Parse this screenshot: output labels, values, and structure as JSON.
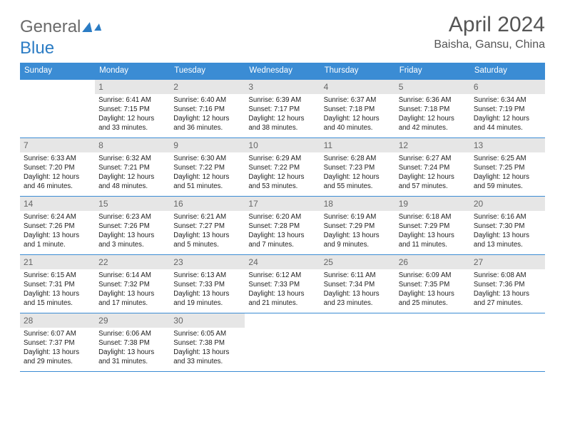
{
  "logo": {
    "word1": "General",
    "word2": "Blue"
  },
  "title": "April 2024",
  "location": "Baisha, Gansu, China",
  "colors": {
    "header_bg": "#3b8cd4",
    "header_text": "#ffffff",
    "daynum_bg": "#e6e6e6",
    "daynum_text": "#666666",
    "cell_border": "#3b8cd4",
    "body_text": "#222222",
    "logo_text": "#6a6a6a",
    "logo_accent": "#2b7cc4"
  },
  "weekdays": [
    "Sunday",
    "Monday",
    "Tuesday",
    "Wednesday",
    "Thursday",
    "Friday",
    "Saturday"
  ],
  "weeks": [
    [
      null,
      {
        "n": "1",
        "sr": "6:41 AM",
        "ss": "7:15 PM",
        "dl": "12 hours and 33 minutes."
      },
      {
        "n": "2",
        "sr": "6:40 AM",
        "ss": "7:16 PM",
        "dl": "12 hours and 36 minutes."
      },
      {
        "n": "3",
        "sr": "6:39 AM",
        "ss": "7:17 PM",
        "dl": "12 hours and 38 minutes."
      },
      {
        "n": "4",
        "sr": "6:37 AM",
        "ss": "7:18 PM",
        "dl": "12 hours and 40 minutes."
      },
      {
        "n": "5",
        "sr": "6:36 AM",
        "ss": "7:18 PM",
        "dl": "12 hours and 42 minutes."
      },
      {
        "n": "6",
        "sr": "6:34 AM",
        "ss": "7:19 PM",
        "dl": "12 hours and 44 minutes."
      }
    ],
    [
      {
        "n": "7",
        "sr": "6:33 AM",
        "ss": "7:20 PM",
        "dl": "12 hours and 46 minutes."
      },
      {
        "n": "8",
        "sr": "6:32 AM",
        "ss": "7:21 PM",
        "dl": "12 hours and 48 minutes."
      },
      {
        "n": "9",
        "sr": "6:30 AM",
        "ss": "7:22 PM",
        "dl": "12 hours and 51 minutes."
      },
      {
        "n": "10",
        "sr": "6:29 AM",
        "ss": "7:22 PM",
        "dl": "12 hours and 53 minutes."
      },
      {
        "n": "11",
        "sr": "6:28 AM",
        "ss": "7:23 PM",
        "dl": "12 hours and 55 minutes."
      },
      {
        "n": "12",
        "sr": "6:27 AM",
        "ss": "7:24 PM",
        "dl": "12 hours and 57 minutes."
      },
      {
        "n": "13",
        "sr": "6:25 AM",
        "ss": "7:25 PM",
        "dl": "12 hours and 59 minutes."
      }
    ],
    [
      {
        "n": "14",
        "sr": "6:24 AM",
        "ss": "7:26 PM",
        "dl": "13 hours and 1 minute."
      },
      {
        "n": "15",
        "sr": "6:23 AM",
        "ss": "7:26 PM",
        "dl": "13 hours and 3 minutes."
      },
      {
        "n": "16",
        "sr": "6:21 AM",
        "ss": "7:27 PM",
        "dl": "13 hours and 5 minutes."
      },
      {
        "n": "17",
        "sr": "6:20 AM",
        "ss": "7:28 PM",
        "dl": "13 hours and 7 minutes."
      },
      {
        "n": "18",
        "sr": "6:19 AM",
        "ss": "7:29 PM",
        "dl": "13 hours and 9 minutes."
      },
      {
        "n": "19",
        "sr": "6:18 AM",
        "ss": "7:29 PM",
        "dl": "13 hours and 11 minutes."
      },
      {
        "n": "20",
        "sr": "6:16 AM",
        "ss": "7:30 PM",
        "dl": "13 hours and 13 minutes."
      }
    ],
    [
      {
        "n": "21",
        "sr": "6:15 AM",
        "ss": "7:31 PM",
        "dl": "13 hours and 15 minutes."
      },
      {
        "n": "22",
        "sr": "6:14 AM",
        "ss": "7:32 PM",
        "dl": "13 hours and 17 minutes."
      },
      {
        "n": "23",
        "sr": "6:13 AM",
        "ss": "7:33 PM",
        "dl": "13 hours and 19 minutes."
      },
      {
        "n": "24",
        "sr": "6:12 AM",
        "ss": "7:33 PM",
        "dl": "13 hours and 21 minutes."
      },
      {
        "n": "25",
        "sr": "6:11 AM",
        "ss": "7:34 PM",
        "dl": "13 hours and 23 minutes."
      },
      {
        "n": "26",
        "sr": "6:09 AM",
        "ss": "7:35 PM",
        "dl": "13 hours and 25 minutes."
      },
      {
        "n": "27",
        "sr": "6:08 AM",
        "ss": "7:36 PM",
        "dl": "13 hours and 27 minutes."
      }
    ],
    [
      {
        "n": "28",
        "sr": "6:07 AM",
        "ss": "7:37 PM",
        "dl": "13 hours and 29 minutes."
      },
      {
        "n": "29",
        "sr": "6:06 AM",
        "ss": "7:38 PM",
        "dl": "13 hours and 31 minutes."
      },
      {
        "n": "30",
        "sr": "6:05 AM",
        "ss": "7:38 PM",
        "dl": "13 hours and 33 minutes."
      },
      null,
      null,
      null,
      null
    ]
  ],
  "labels": {
    "sunrise": "Sunrise:",
    "sunset": "Sunset:",
    "daylight": "Daylight:"
  }
}
